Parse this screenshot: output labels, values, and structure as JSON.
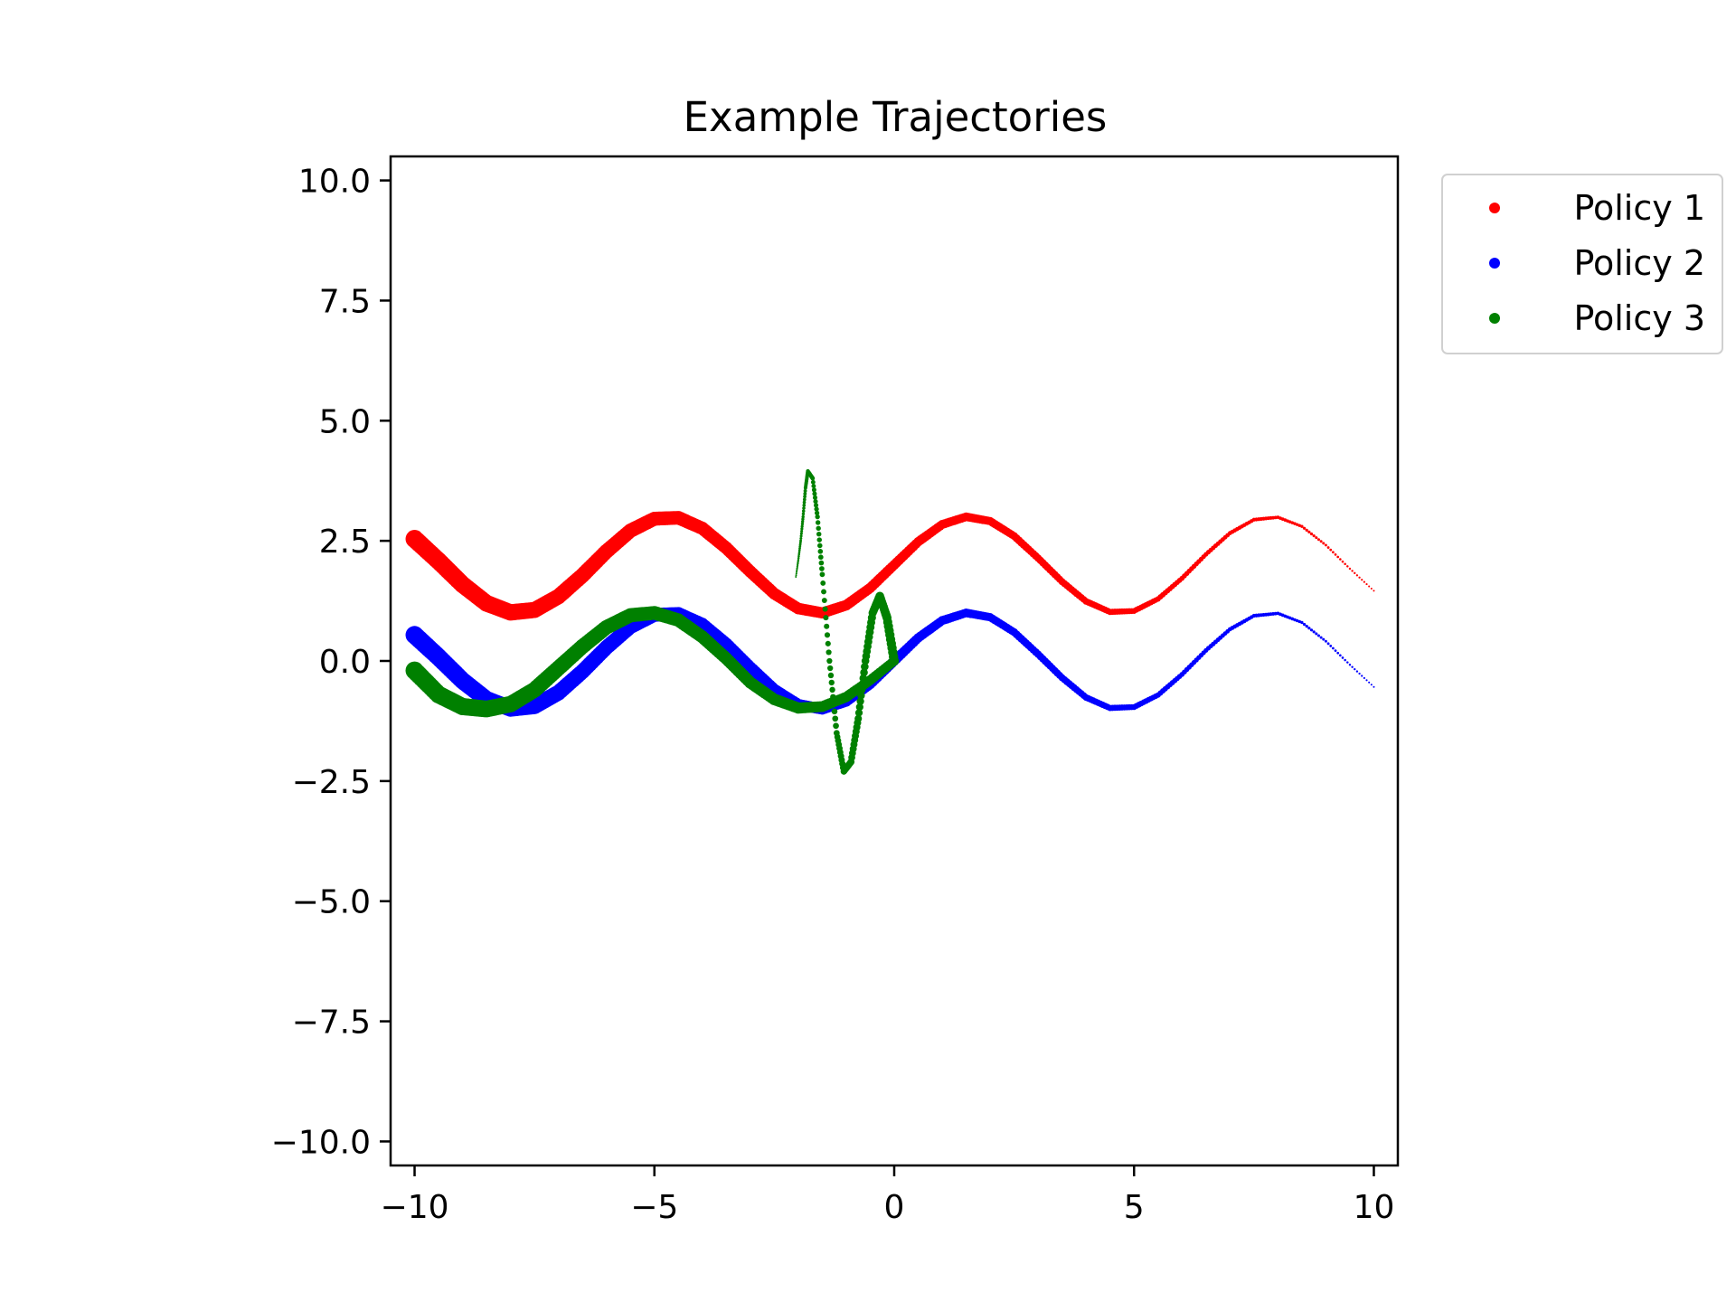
{
  "chart_data": {
    "type": "scatter",
    "title": "Example Trajectories",
    "xlabel": "",
    "ylabel": "",
    "xlim": [
      -10.5,
      10.5
    ],
    "ylim": [
      -10.5,
      10.5
    ],
    "grid": false,
    "legend_position": "outside-top-right",
    "x_ticks": [
      -10,
      -5,
      0,
      5,
      10
    ],
    "x_tick_labels": [
      "−10",
      "−5",
      "0",
      "5",
      "10"
    ],
    "y_ticks": [
      10.0,
      7.5,
      5.0,
      2.5,
      0.0,
      -2.5,
      -5.0,
      -7.5,
      -10.0
    ],
    "y_tick_labels": [
      "10.0",
      "7.5",
      "5.0",
      "2.5",
      "0.0",
      "−2.5",
      "−5.0",
      "−7.5",
      "−10.0"
    ],
    "series": [
      {
        "name": "Policy 1",
        "color": "#ff0000",
        "x": [
          -10.0,
          -9.5,
          -9.0,
          -8.5,
          -8.0,
          -7.5,
          -7.0,
          -6.5,
          -6.0,
          -5.5,
          -5.0,
          -4.5,
          -4.0,
          -3.5,
          -3.0,
          -2.5,
          -2.0,
          -1.5,
          -1.0,
          -0.5,
          0.0,
          0.5,
          1.0,
          1.5,
          2.0,
          2.5,
          3.0,
          3.5,
          4.0,
          4.5,
          5.0,
          5.5,
          6.0,
          6.5,
          7.0,
          7.5,
          8.0,
          8.5,
          9.0,
          9.5,
          10.0
        ],
        "y": [
          2.54,
          2.08,
          1.59,
          1.2,
          1.01,
          1.06,
          1.34,
          1.78,
          2.28,
          2.71,
          2.96,
          2.98,
          2.76,
          2.35,
          1.86,
          1.4,
          1.09,
          1.0,
          1.16,
          1.52,
          2.0,
          2.48,
          2.84,
          3.0,
          2.91,
          2.6,
          2.14,
          1.65,
          1.24,
          1.02,
          1.04,
          1.29,
          1.72,
          2.22,
          2.66,
          2.94,
          2.99,
          2.8,
          2.41,
          1.92,
          1.46
        ]
      },
      {
        "name": "Policy 2",
        "color": "#0000ff",
        "x": [
          -10.0,
          -9.5,
          -9.0,
          -8.5,
          -8.0,
          -7.5,
          -7.0,
          -6.5,
          -6.0,
          -5.5,
          -5.0,
          -4.5,
          -4.0,
          -3.5,
          -3.0,
          -2.5,
          -2.0,
          -1.5,
          -1.0,
          -0.5,
          0.0,
          0.5,
          1.0,
          1.5,
          2.0,
          2.5,
          3.0,
          3.5,
          4.0,
          4.5,
          5.0,
          5.5,
          6.0,
          6.5,
          7.0,
          7.5,
          8.0,
          8.5,
          9.0,
          9.5,
          10.0
        ],
        "y": [
          0.54,
          0.08,
          -0.41,
          -0.8,
          -0.99,
          -0.94,
          -0.66,
          -0.22,
          0.28,
          0.71,
          0.96,
          0.98,
          0.76,
          0.35,
          -0.14,
          -0.6,
          -0.91,
          -1.0,
          -0.84,
          -0.48,
          0.0,
          0.48,
          0.84,
          1.0,
          0.91,
          0.6,
          0.14,
          -0.35,
          -0.76,
          -0.98,
          -0.96,
          -0.71,
          -0.28,
          0.22,
          0.66,
          0.94,
          0.99,
          0.8,
          0.41,
          -0.08,
          -0.54
        ]
      },
      {
        "name": "Policy 3",
        "color": "#008000",
        "x": [
          -10.0,
          -9.5,
          -9.0,
          -8.5,
          -8.0,
          -7.5,
          -7.0,
          -6.5,
          -6.0,
          -5.5,
          -5.0,
          -4.5,
          -4.0,
          -3.5,
          -3.0,
          -2.5,
          -2.0,
          -1.5,
          -1.0,
          -0.5,
          0.0,
          -0.15,
          -0.3,
          -0.45,
          -0.6,
          -0.75,
          -0.9,
          -1.05,
          -1.2,
          -1.35,
          -1.5,
          -1.6,
          -1.7,
          -1.8,
          -1.85,
          -1.9,
          -1.95,
          -2.0,
          -2.05
        ],
        "y": [
          -0.2,
          -0.7,
          -0.95,
          -1.0,
          -0.9,
          -0.6,
          -0.15,
          0.3,
          0.7,
          0.95,
          1.0,
          0.85,
          0.5,
          0.05,
          -0.45,
          -0.8,
          -0.98,
          -0.95,
          -0.75,
          -0.4,
          0.0,
          0.9,
          1.35,
          1.0,
          0.0,
          -1.2,
          -2.1,
          -2.3,
          -1.5,
          0.0,
          1.8,
          3.0,
          3.8,
          3.95,
          3.6,
          3.0,
          2.5,
          2.1,
          1.75
        ]
      }
    ]
  }
}
